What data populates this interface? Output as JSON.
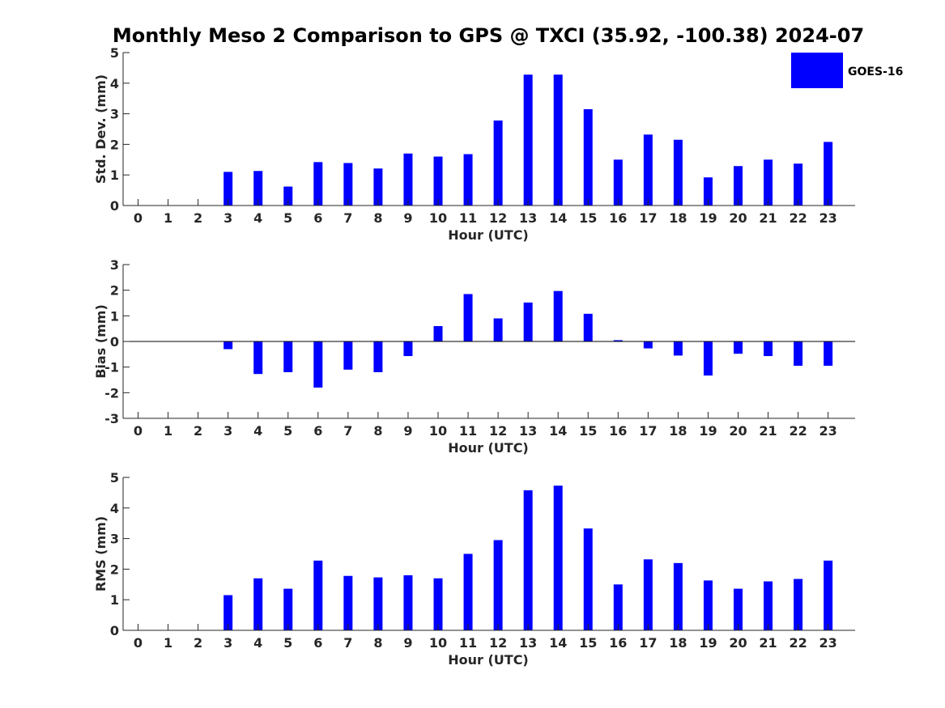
{
  "title": "Monthly Meso 2 Comparison to GPS @ TXCI (35.92, -100.38) 2024-07",
  "colors": {
    "bar": "#0000ff",
    "axis": "#262626",
    "background": "#ffffff"
  },
  "chart_data": [
    {
      "type": "bar",
      "ylabel": "Std. Dev. (mm)",
      "xlabel": "Hour (UTC)",
      "ylim": [
        0,
        5
      ],
      "yticks": [
        0,
        1,
        2,
        3,
        4,
        5
      ],
      "categories": [
        "0",
        "1",
        "2",
        "3",
        "4",
        "5",
        "6",
        "7",
        "8",
        "9",
        "10",
        "11",
        "12",
        "13",
        "14",
        "15",
        "16",
        "17",
        "18",
        "19",
        "20",
        "21",
        "22",
        "23"
      ],
      "series": [
        {
          "name": "GOES-16",
          "values": [
            0,
            0,
            0,
            1.1,
            1.13,
            0.62,
            1.42,
            1.39,
            1.21,
            1.7,
            1.6,
            1.68,
            2.78,
            4.28,
            4.28,
            3.15,
            1.5,
            2.32,
            2.15,
            0.92,
            1.29,
            1.5,
            1.37,
            2.08
          ]
        }
      ],
      "legend": {
        "position": "top-right",
        "entries": [
          "GOES-16"
        ]
      },
      "grid": false
    },
    {
      "type": "bar",
      "ylabel": "Bias (mm)",
      "xlabel": "Hour (UTC)",
      "ylim": [
        -3,
        3
      ],
      "yticks": [
        -3,
        -2,
        -1,
        0,
        1,
        2,
        3
      ],
      "categories": [
        "0",
        "1",
        "2",
        "3",
        "4",
        "5",
        "6",
        "7",
        "8",
        "9",
        "10",
        "11",
        "12",
        "13",
        "14",
        "15",
        "16",
        "17",
        "18",
        "19",
        "20",
        "21",
        "22",
        "23"
      ],
      "series": [
        {
          "name": "GOES-16",
          "values": [
            0,
            0,
            0,
            -0.3,
            -1.27,
            -1.2,
            -1.8,
            -1.1,
            -1.2,
            -0.57,
            0.6,
            1.85,
            0.9,
            1.52,
            1.97,
            1.08,
            0.05,
            -0.27,
            -0.55,
            -1.33,
            -0.48,
            -0.57,
            -0.95,
            -0.95
          ]
        }
      ],
      "grid": false
    },
    {
      "type": "bar",
      "ylabel": "RMS (mm)",
      "xlabel": "Hour (UTC)",
      "ylim": [
        0,
        5
      ],
      "yticks": [
        0,
        1,
        2,
        3,
        4,
        5
      ],
      "categories": [
        "0",
        "1",
        "2",
        "3",
        "4",
        "5",
        "6",
        "7",
        "8",
        "9",
        "10",
        "11",
        "12",
        "13",
        "14",
        "15",
        "16",
        "17",
        "18",
        "19",
        "20",
        "21",
        "22",
        "23"
      ],
      "series": [
        {
          "name": "GOES-16",
          "values": [
            0,
            0,
            0,
            1.15,
            1.7,
            1.36,
            2.28,
            1.78,
            1.73,
            1.8,
            1.7,
            2.5,
            2.95,
            4.58,
            4.73,
            3.33,
            1.5,
            2.32,
            2.2,
            1.63,
            1.36,
            1.6,
            1.68,
            2.28
          ]
        }
      ],
      "grid": false
    }
  ]
}
